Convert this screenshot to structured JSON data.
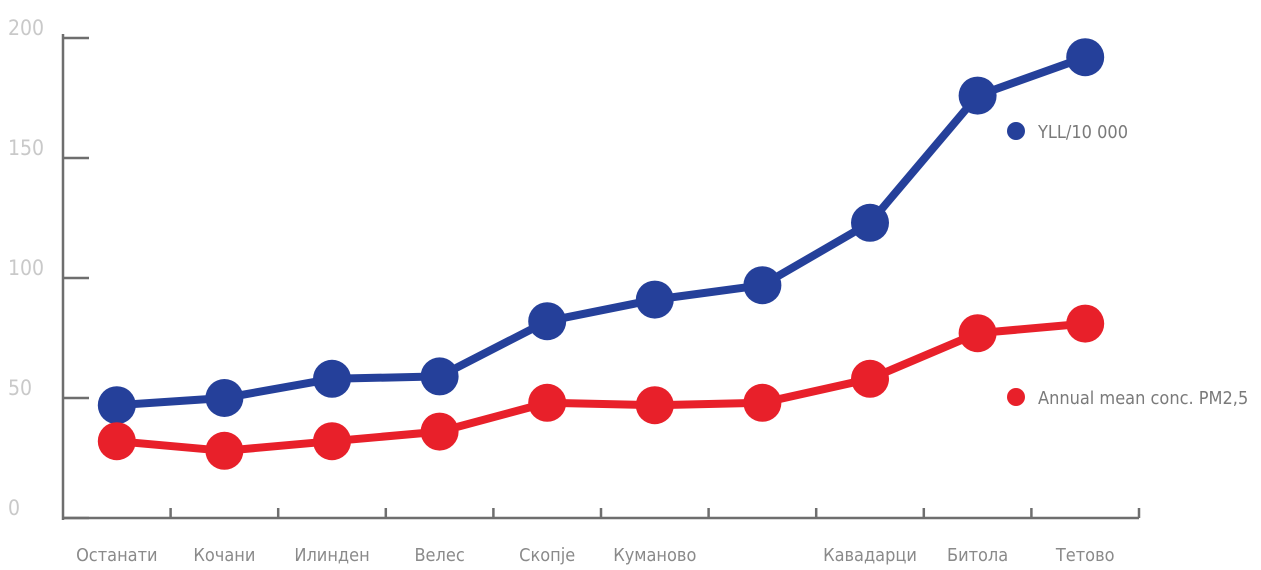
{
  "chart_data": {
    "type": "line",
    "categories": [
      "Останати",
      "Кочани",
      "Илинден",
      "Велес",
      "Скопје",
      "Куманово",
      "",
      "Кавадарци",
      "Битола",
      "Тетово"
    ],
    "y_ticks": [
      0,
      50,
      100,
      150,
      200
    ],
    "ylim": [
      0,
      200
    ],
    "grid": false,
    "legend_position": "right",
    "series": [
      {
        "name": "YLL/10 000",
        "color": "#25409a",
        "values": [
          47,
          50,
          58,
          59,
          82,
          91,
          97,
          123,
          176,
          192
        ]
      },
      {
        "name": "Annual mean conc. PM2,5",
        "color": "#e8202a",
        "values": [
          32,
          28,
          32,
          36,
          48,
          47,
          48,
          58,
          77,
          81
        ]
      }
    ]
  }
}
